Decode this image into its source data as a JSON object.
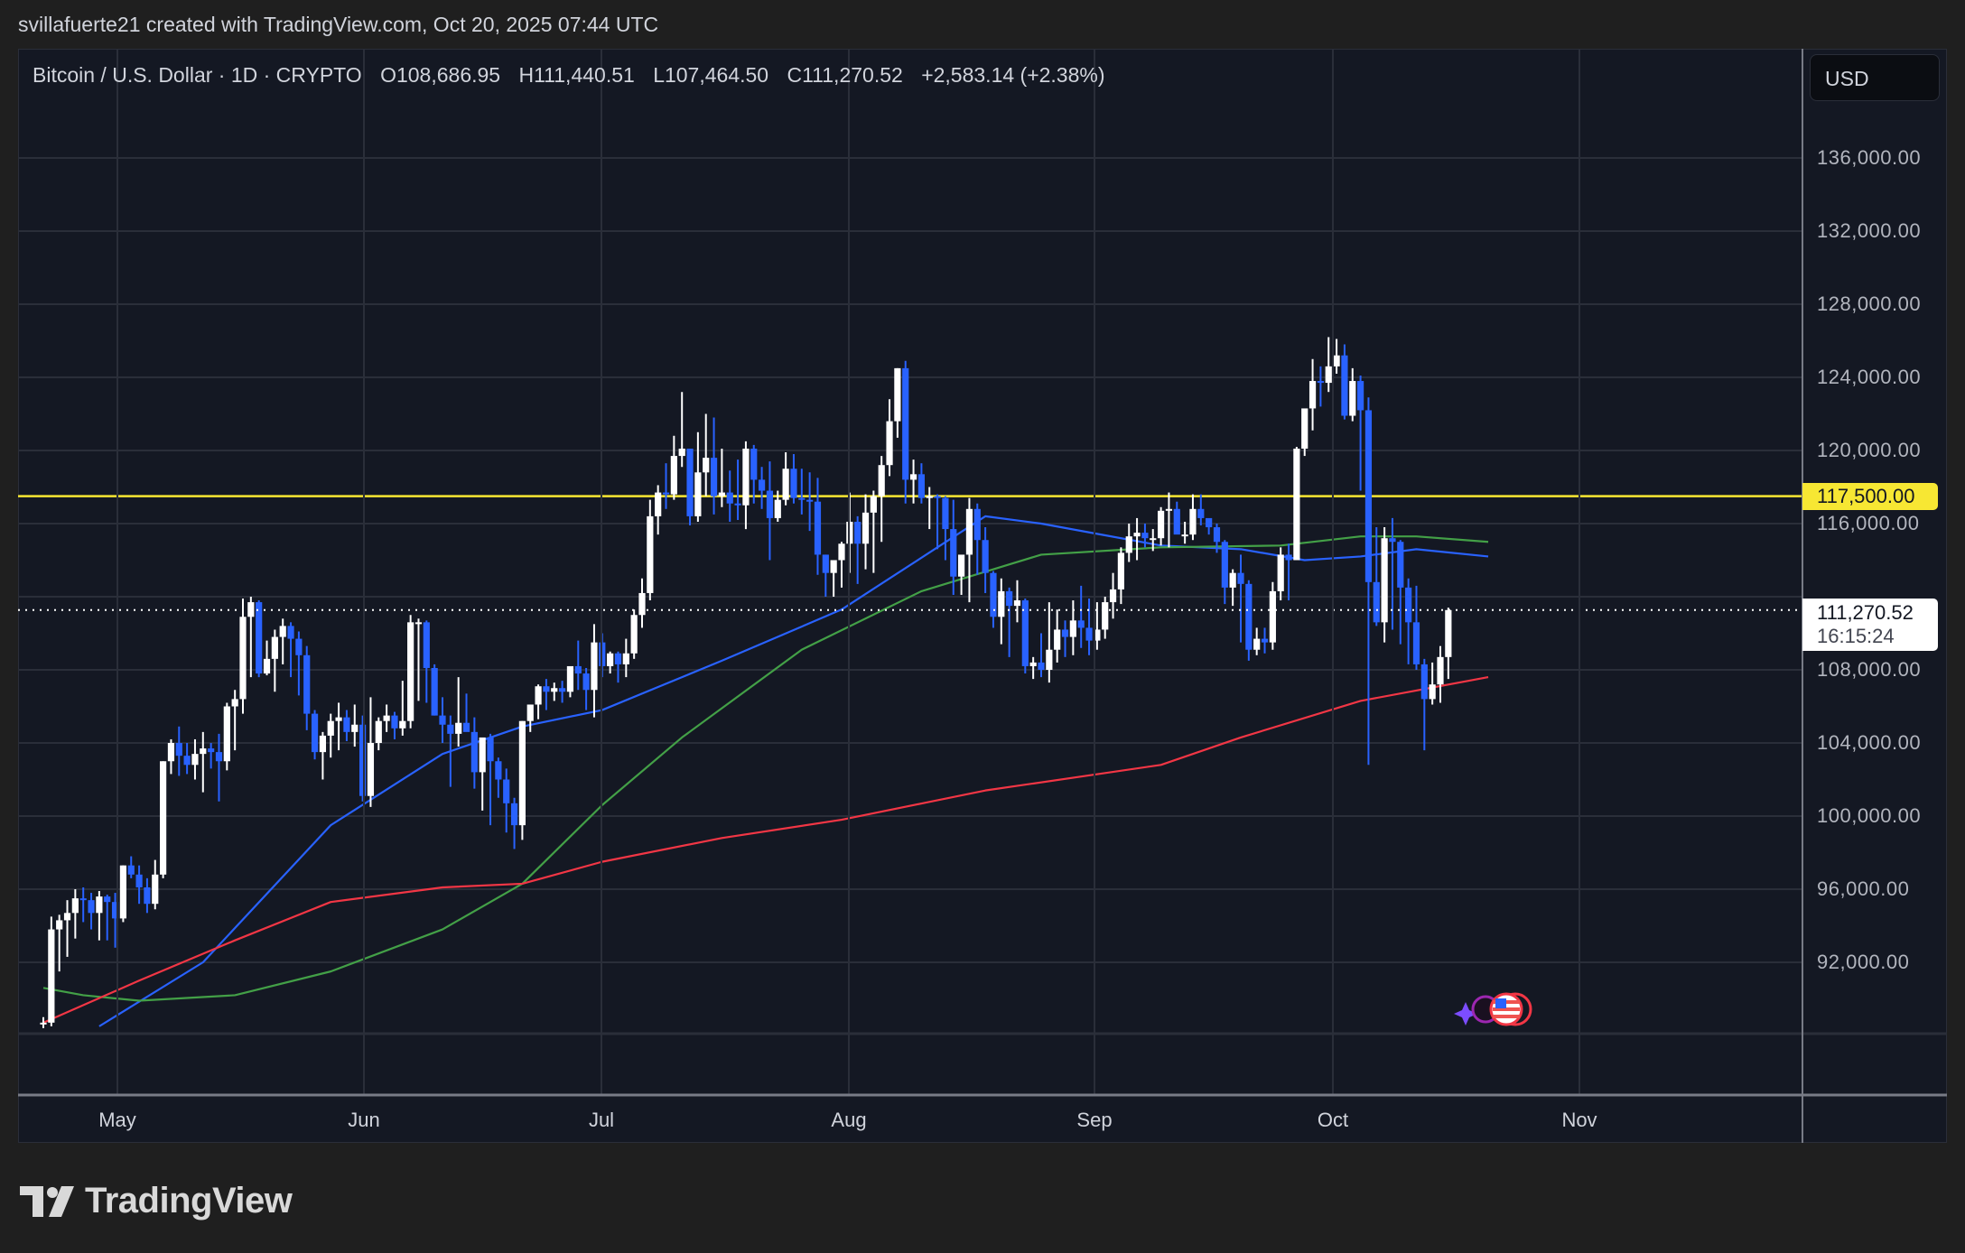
{
  "credit": "svillafuerte21 created with TradingView.com, Oct 20, 2025 07:44 UTC",
  "legend": {
    "symbol": "Bitcoin / U.S. Dollar · 1D · CRYPTO",
    "open": "O108,686.95",
    "high": "H111,440.51",
    "low": "L107,464.50",
    "close": "C111,270.52",
    "change": "+2,583.14 (+2.38%)"
  },
  "currency_button": "USD",
  "price_axis": {
    "labels": [
      "136,000.00",
      "132,000.00",
      "128,000.00",
      "124,000.00",
      "120,000.00",
      "116,000.00",
      "112,000.00",
      "108,000.00",
      "104,000.00",
      "100,000.00",
      "96,000.00",
      "92,000.00"
    ],
    "level_tag": "117,500.00",
    "last_price": "111,270.52",
    "countdown": "16:15:24"
  },
  "time_axis": {
    "labels": [
      "May",
      "Jun",
      "Jul",
      "Aug",
      "Sep",
      "Oct",
      "Nov"
    ]
  },
  "logo_text": "TradingView",
  "colors": {
    "up": "#ffffff",
    "down": "#2962ff",
    "ma_fast": "#2962ff",
    "ma_mid": "#43a047",
    "ma_slow": "#f23645",
    "level": "#f7e733",
    "background": "#141823",
    "grid": "#2a2e39"
  },
  "chart_data": {
    "type": "candlestick",
    "title": "Bitcoin / U.S. Dollar · 1D · CRYPTO",
    "xlabel": "",
    "ylabel": "USD",
    "ylim": [
      88500,
      140000
    ],
    "x_ticks": [
      "May",
      "Jun",
      "Jul",
      "Aug",
      "Sep",
      "Oct",
      "Nov"
    ],
    "y_ticks": [
      92000,
      96000,
      100000,
      104000,
      108000,
      112000,
      116000,
      120000,
      124000,
      128000,
      132000,
      136000
    ],
    "grid": true,
    "start_date": "2025-04-22",
    "horizontal_levels": [
      {
        "price": 117500,
        "color": "#f7e733",
        "label": "117,500.00"
      }
    ],
    "last_price": 111270.52,
    "ohlc_fields": [
      "open",
      "high",
      "low",
      "close"
    ],
    "candles": [
      [
        88600,
        89000,
        88400,
        88700
      ],
      [
        88700,
        94500,
        88500,
        93800
      ],
      [
        93800,
        94600,
        91500,
        94300
      ],
      [
        94300,
        95400,
        92300,
        94700
      ],
      [
        94700,
        96000,
        93300,
        95500
      ],
      [
        95500,
        96100,
        94200,
        95400
      ],
      [
        95400,
        95800,
        93800,
        94700
      ],
      [
        94700,
        95900,
        93200,
        95600
      ],
      [
        95600,
        95700,
        93200,
        95300
      ],
      [
        95300,
        95800,
        92800,
        94400
      ],
      [
        94400,
        97300,
        94200,
        97300
      ],
      [
        97300,
        97800,
        96600,
        96800
      ],
      [
        96800,
        97300,
        95200,
        96100
      ],
      [
        96100,
        96600,
        94700,
        95200
      ],
      [
        95200,
        97600,
        94900,
        96800
      ],
      [
        96800,
        103000,
        96600,
        103000
      ],
      [
        103000,
        104200,
        102300,
        104000
      ],
      [
        104000,
        104900,
        102200,
        103300
      ],
      [
        103300,
        104000,
        102300,
        102800
      ],
      [
        102800,
        104200,
        102000,
        103400
      ],
      [
        103400,
        104600,
        101300,
        103700
      ],
      [
        103700,
        104000,
        102600,
        103500
      ],
      [
        103500,
        104500,
        100800,
        103000
      ],
      [
        103000,
        106200,
        102500,
        106000
      ],
      [
        106000,
        106900,
        103600,
        106400
      ],
      [
        106400,
        111900,
        105600,
        110900
      ],
      [
        110900,
        112000,
        107600,
        111700
      ],
      [
        111700,
        111800,
        107600,
        107800
      ],
      [
        107800,
        109600,
        107700,
        108600
      ],
      [
        108600,
        110200,
        106800,
        109800
      ],
      [
        109800,
        110800,
        108300,
        110400
      ],
      [
        110400,
        110600,
        107600,
        109700
      ],
      [
        109700,
        110100,
        106600,
        108800
      ],
      [
        108800,
        109300,
        104700,
        105600
      ],
      [
        105600,
        105800,
        103100,
        103500
      ],
      [
        103500,
        104600,
        102000,
        104400
      ],
      [
        104400,
        105600,
        103200,
        105200
      ],
      [
        105200,
        106200,
        103600,
        105400
      ],
      [
        105400,
        105800,
        104100,
        104600
      ],
      [
        104600,
        106100,
        103800,
        105000
      ],
      [
        105000,
        105500,
        100800,
        101100
      ],
      [
        101100,
        106500,
        100500,
        104000
      ],
      [
        104000,
        105400,
        103600,
        105200
      ],
      [
        105200,
        106100,
        104600,
        105500
      ],
      [
        105500,
        105700,
        104200,
        104800
      ],
      [
        104800,
        107400,
        104400,
        105200
      ],
      [
        105200,
        111000,
        104800,
        110600
      ],
      [
        110600,
        110800,
        106300,
        110600
      ],
      [
        110600,
        110700,
        106200,
        108100
      ],
      [
        108100,
        108300,
        105500,
        105500
      ],
      [
        105500,
        106500,
        104000,
        105000
      ],
      [
        105000,
        105500,
        101600,
        104500
      ],
      [
        104500,
        107600,
        103800,
        105100
      ],
      [
        105100,
        106700,
        104800,
        104600
      ],
      [
        104600,
        105400,
        101500,
        102400
      ],
      [
        102400,
        103800,
        100300,
        104300
      ],
      [
        104300,
        104500,
        99500,
        103000
      ],
      [
        103000,
        103200,
        101000,
        102000
      ],
      [
        102000,
        102600,
        99100,
        100700
      ],
      [
        100700,
        101000,
        98200,
        99500
      ],
      [
        99500,
        105200,
        98700,
        105200
      ],
      [
        105200,
        106100,
        104600,
        106100
      ],
      [
        106100,
        107200,
        105300,
        107100
      ],
      [
        107100,
        107500,
        105800,
        106800
      ],
      [
        106800,
        107300,
        106300,
        107000
      ],
      [
        107000,
        107400,
        106200,
        106800
      ],
      [
        106800,
        108100,
        106500,
        108200
      ],
      [
        108200,
        109600,
        106900,
        107800
      ],
      [
        107800,
        108100,
        105800,
        106900
      ],
      [
        106900,
        110500,
        105400,
        109500
      ],
      [
        109500,
        110000,
        107600,
        108200
      ],
      [
        108200,
        109000,
        107800,
        108900
      ],
      [
        108900,
        109000,
        107300,
        108300
      ],
      [
        108300,
        109700,
        107600,
        108900
      ],
      [
        108900,
        111300,
        108600,
        111000
      ],
      [
        111000,
        113000,
        110300,
        112200
      ],
      [
        112200,
        117300,
        111800,
        116400
      ],
      [
        116400,
        118100,
        115400,
        117700
      ],
      [
        117700,
        119300,
        116800,
        117600
      ],
      [
        117600,
        120800,
        117300,
        119700
      ],
      [
        119700,
        123200,
        119100,
        120100
      ],
      [
        120100,
        120100,
        115900,
        116400
      ],
      [
        116400,
        121000,
        116100,
        118800
      ],
      [
        118800,
        122000,
        117500,
        119600
      ],
      [
        119600,
        121800,
        116500,
        117500
      ],
      [
        117500,
        120100,
        116900,
        117700
      ],
      [
        117700,
        118900,
        116100,
        117100
      ],
      [
        117100,
        119500,
        116200,
        117000
      ],
      [
        117000,
        120500,
        115700,
        120100
      ],
      [
        120100,
        120300,
        117100,
        118400
      ],
      [
        118400,
        119100,
        116800,
        117800
      ],
      [
        117800,
        119400,
        114000,
        116300
      ],
      [
        116300,
        117800,
        116100,
        117300
      ],
      [
        117300,
        119900,
        117000,
        119000
      ],
      [
        119000,
        119800,
        117100,
        117400
      ],
      [
        117400,
        119000,
        116500,
        117300
      ],
      [
        117300,
        118800,
        115600,
        117200
      ],
      [
        117200,
        118500,
        113200,
        114300
      ],
      [
        114300,
        114300,
        112000,
        113300
      ],
      [
        113300,
        113900,
        112000,
        114000
      ],
      [
        114000,
        115000,
        112500,
        114900
      ],
      [
        114900,
        117700,
        113300,
        116100
      ],
      [
        116100,
        116400,
        112700,
        114900
      ],
      [
        114900,
        117600,
        113500,
        116600
      ],
      [
        116600,
        117800,
        113300,
        117500
      ],
      [
        117500,
        119700,
        115000,
        119200
      ],
      [
        119200,
        122800,
        118600,
        121600
      ],
      [
        121600,
        124500,
        120700,
        124500
      ],
      [
        124500,
        124900,
        117100,
        118400
      ],
      [
        118400,
        119500,
        117100,
        118700
      ],
      [
        118700,
        119300,
        117100,
        117400
      ],
      [
        117400,
        118000,
        115700,
        117500
      ],
      [
        117500,
        117600,
        114600,
        117400
      ],
      [
        117400,
        117500,
        114000,
        115700
      ],
      [
        115700,
        117300,
        112100,
        113100
      ],
      [
        113100,
        113700,
        112100,
        114300
      ],
      [
        114300,
        117400,
        111700,
        116800
      ],
      [
        116800,
        117100,
        113200,
        115100
      ],
      [
        115100,
        115800,
        112200,
        113300
      ],
      [
        113300,
        113400,
        110300,
        110900
      ],
      [
        110900,
        113000,
        109400,
        112300
      ],
      [
        112300,
        112500,
        108700,
        111500
      ],
      [
        111500,
        112900,
        110600,
        111800
      ],
      [
        111800,
        111900,
        107800,
        108200
      ],
      [
        108200,
        108700,
        107500,
        108400
      ],
      [
        108400,
        110000,
        107600,
        108000
      ],
      [
        108000,
        111700,
        107300,
        109100
      ],
      [
        109100,
        111300,
        108400,
        110200
      ],
      [
        110200,
        110700,
        108700,
        109800
      ],
      [
        109800,
        111800,
        108800,
        110700
      ],
      [
        110700,
        112600,
        109200,
        110300
      ],
      [
        110300,
        111900,
        108800,
        109600
      ],
      [
        109600,
        111700,
        109100,
        110200
      ],
      [
        110200,
        112000,
        109700,
        111700
      ],
      [
        111700,
        113300,
        110800,
        112400
      ],
      [
        112400,
        114700,
        111600,
        114400
      ],
      [
        114400,
        116000,
        113900,
        115300
      ],
      [
        115300,
        116300,
        114000,
        115500
      ],
      [
        115500,
        116000,
        114700,
        115200
      ],
      [
        115200,
        115700,
        114500,
        115200
      ],
      [
        115200,
        116900,
        114800,
        116700
      ],
      [
        116700,
        117700,
        114700,
        116800
      ],
      [
        116800,
        117200,
        115500,
        115400
      ],
      [
        115400,
        116100,
        114900,
        115400
      ],
      [
        115400,
        117600,
        115100,
        116800
      ],
      [
        116800,
        117600,
        115900,
        116300
      ],
      [
        116300,
        116200,
        115400,
        115800
      ],
      [
        115800,
        116000,
        114400,
        115000
      ],
      [
        115000,
        115100,
        111600,
        112500
      ],
      [
        112500,
        113500,
        111500,
        113300
      ],
      [
        113300,
        114300,
        109500,
        112700
      ],
      [
        112700,
        112900,
        108500,
        109100
      ],
      [
        109100,
        110300,
        108800,
        109700
      ],
      [
        109700,
        110300,
        108900,
        109500
      ],
      [
        109500,
        112800,
        109100,
        112300
      ],
      [
        112300,
        114700,
        111800,
        114300
      ],
      [
        114300,
        114900,
        111800,
        114000
      ],
      [
        114000,
        120200,
        114000,
        120100
      ],
      [
        120100,
        121500,
        119700,
        122300
      ],
      [
        122300,
        125000,
        121100,
        123800
      ],
      [
        123800,
        124600,
        122400,
        123700
      ],
      [
        123700,
        126200,
        123200,
        124600
      ],
      [
        124600,
        126100,
        124200,
        125200
      ],
      [
        125200,
        125800,
        121700,
        121900
      ],
      [
        121900,
        124500,
        121600,
        123800
      ],
      [
        123800,
        124100,
        117800,
        122200
      ],
      [
        122200,
        122900,
        102800,
        112800
      ],
      [
        112800,
        115800,
        110400,
        110600
      ],
      [
        110600,
        115800,
        109500,
        115200
      ],
      [
        115200,
        116300,
        110200,
        115000
      ],
      [
        115000,
        115100,
        109400,
        112500
      ],
      [
        112500,
        113000,
        108300,
        110600
      ],
      [
        110600,
        112600,
        108000,
        108300
      ],
      [
        108300,
        108600,
        103600,
        106400
      ],
      [
        106400,
        108400,
        106100,
        107200
      ],
      [
        107200,
        109300,
        106200,
        108700
      ],
      [
        108700,
        111400,
        107500,
        111270
      ]
    ],
    "series": [
      {
        "name": "MA fast (blue)",
        "color": "#2962ff",
        "points": [
          [
            7,
            88500
          ],
          [
            20,
            92000
          ],
          [
            36,
            99500
          ],
          [
            50,
            103400
          ],
          [
            60,
            104900
          ],
          [
            70,
            105800
          ],
          [
            85,
            108500
          ],
          [
            100,
            111300
          ],
          [
            112,
            114700
          ],
          [
            118,
            116400
          ],
          [
            125,
            116000
          ],
          [
            140,
            114800
          ],
          [
            150,
            114600
          ],
          [
            158,
            114000
          ],
          [
            165,
            114200
          ],
          [
            172,
            114600
          ],
          [
            181,
            114200
          ]
        ]
      },
      {
        "name": "MA mid (green)",
        "color": "#43a047",
        "points": [
          [
            0,
            90600
          ],
          [
            5,
            90200
          ],
          [
            12,
            89900
          ],
          [
            24,
            90200
          ],
          [
            36,
            91500
          ],
          [
            50,
            93800
          ],
          [
            60,
            96300
          ],
          [
            70,
            100600
          ],
          [
            80,
            104300
          ],
          [
            95,
            109100
          ],
          [
            110,
            112300
          ],
          [
            125,
            114300
          ],
          [
            140,
            114700
          ],
          [
            155,
            114800
          ],
          [
            165,
            115300
          ],
          [
            172,
            115300
          ],
          [
            181,
            115000
          ]
        ]
      },
      {
        "name": "MA slow (red)",
        "color": "#f23645",
        "points": [
          [
            0,
            88700
          ],
          [
            12,
            91000
          ],
          [
            24,
            93200
          ],
          [
            36,
            95300
          ],
          [
            50,
            96100
          ],
          [
            60,
            96300
          ],
          [
            70,
            97500
          ],
          [
            85,
            98800
          ],
          [
            100,
            99800
          ],
          [
            118,
            101400
          ],
          [
            140,
            102800
          ],
          [
            150,
            104300
          ],
          [
            165,
            106300
          ],
          [
            181,
            107600
          ]
        ]
      }
    ]
  }
}
